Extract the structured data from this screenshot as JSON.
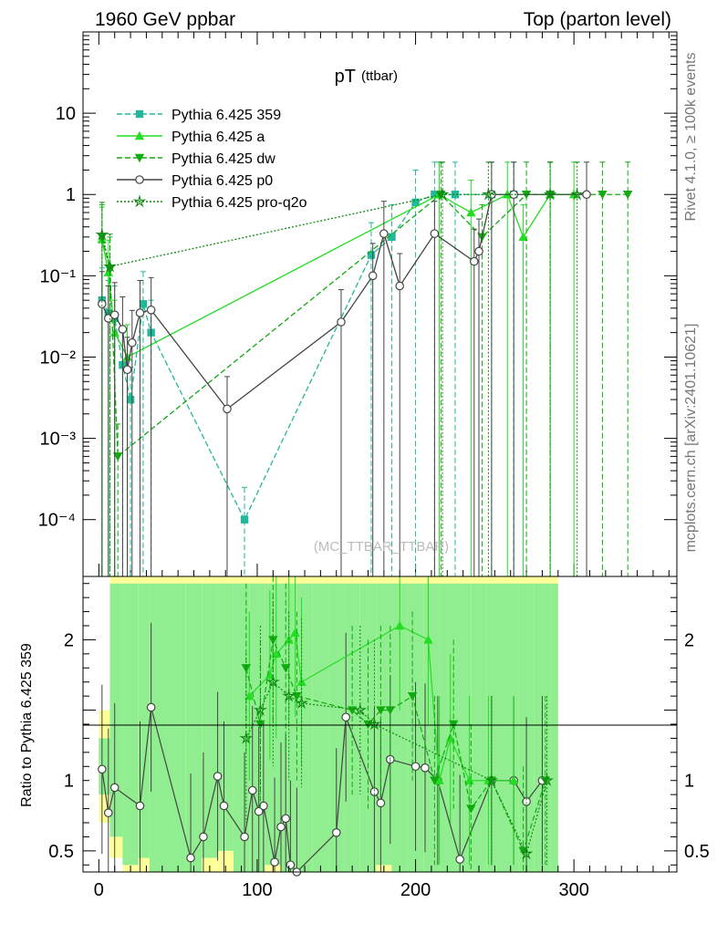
{
  "header": {
    "left": "1960 GeV ppbar",
    "right": "Top (parton level)"
  },
  "side_text": {
    "rivet": "Rivet 4.1.0, ≥ 100k events",
    "mcplots": "mcplots.cern.ch [arXiv:2401.10621]"
  },
  "watermark": "(MC_TTBAR_TTBAR)",
  "chart_data": {
    "type": "line",
    "title_main": "pT",
    "title_sub": "(ttbar)",
    "xlabel": "",
    "ylabel_ratio": "Ratio to Pythia 6.425 359",
    "xlim": [
      -10,
      365
    ],
    "ylim_main": [
      2e-05,
      100
    ],
    "ylim_ratio": [
      0.35,
      2.45
    ],
    "yscale_main": "log",
    "x_ticks": [
      0,
      100,
      200,
      300
    ],
    "y_ticks_main": [
      {
        "v": 10,
        "label": "10"
      },
      {
        "v": 1,
        "label": "1"
      },
      {
        "v": 0.1,
        "label": "10⁻¹"
      },
      {
        "v": 0.01,
        "label": "10⁻²"
      },
      {
        "v": 0.001,
        "label": "10⁻³"
      },
      {
        "v": 0.0001,
        "label": "10⁻⁴"
      }
    ],
    "y_ticks_ratio": [
      {
        "v": 2,
        "label": "2"
      },
      {
        "v": 1,
        "label": "1"
      },
      {
        "v": 0.5,
        "label": "0.5"
      }
    ],
    "legend_position": "top-left",
    "series": [
      {
        "name": "Pythia 6.425 359",
        "color": "#22b89a",
        "dash": "6,3",
        "marker": "square",
        "x": [
          2,
          6,
          10,
          15,
          20,
          28,
          33,
          92,
          172,
          185,
          200,
          212,
          225,
          248,
          262
        ],
        "y": [
          0.05,
          0.035,
          0.03,
          0.008,
          0.003,
          0.045,
          0.02,
          0.0001,
          0.18,
          0.3,
          0.8,
          1.0,
          1.0,
          1.0,
          1.0
        ]
      },
      {
        "name": "Pythia 6.425 a",
        "color": "#22dd22",
        "dash": "",
        "marker": "triangle-up",
        "x": [
          2,
          6,
          10,
          18,
          215,
          235,
          258,
          268,
          285,
          300
        ],
        "y": [
          0.28,
          0.11,
          0.02,
          0.01,
          1.0,
          0.6,
          1.0,
          0.3,
          1.0,
          1.0
        ]
      },
      {
        "name": "Pythia 6.425 dw",
        "color": "#11aa11",
        "dash": "6,3",
        "marker": "triangle-down",
        "x": [
          2,
          7,
          12,
          216,
          242,
          270,
          285,
          318,
          334
        ],
        "y": [
          0.3,
          0.12,
          0.0006,
          1.0,
          0.3,
          1.0,
          1.0,
          1.0,
          1.0
        ]
      },
      {
        "name": "Pythia 6.425 p0",
        "color": "#444444",
        "dash": "",
        "marker": "open-circle",
        "x": [
          2,
          6,
          10,
          15,
          18,
          21,
          26,
          33,
          81,
          153,
          173,
          180,
          190,
          212,
          237,
          240,
          248,
          262,
          308
        ],
        "y": [
          0.045,
          0.03,
          0.033,
          0.022,
          0.007,
          0.015,
          0.035,
          0.038,
          0.0023,
          0.027,
          0.1,
          0.33,
          0.075,
          0.33,
          0.15,
          0.2,
          1.0,
          1.0,
          1.0
        ]
      },
      {
        "name": "Pythia 6.425 pro-q2o",
        "color": "#118811",
        "dash": "2,2",
        "marker": "open-star",
        "x": [
          2,
          7,
          217,
          246,
          285,
          302
        ],
        "y": [
          0.32,
          0.13,
          1.0,
          1.0,
          1.0,
          1.0
        ]
      }
    ],
    "ratio_series": [
      {
        "name": "Pythia 6.425 p0",
        "color": "#444444",
        "x": [
          2,
          6,
          10,
          26,
          33,
          58,
          66,
          75,
          79,
          92,
          97,
          101,
          104,
          111,
          115,
          118,
          121,
          125,
          150,
          156,
          174,
          178,
          184,
          200,
          206,
          214,
          228,
          248,
          262,
          270,
          280
        ],
        "y": [
          1.08,
          0.77,
          0.95,
          0.82,
          1.52,
          0.45,
          0.6,
          1.03,
          0.82,
          0.6,
          0.93,
          0.78,
          0.82,
          0.42,
          0.67,
          0.73,
          0.4,
          0.35,
          0.63,
          1.45,
          0.92,
          0.84,
          1.15,
          1.1,
          1.09,
          1.0,
          0.44,
          1.0,
          1.0,
          0.85,
          1.0
        ]
      },
      {
        "name": "Pythia 6.425 a",
        "color": "#22dd22",
        "x": [
          95,
          108,
          112,
          120,
          124,
          128,
          190,
          208,
          215,
          222,
          234,
          246,
          262
        ],
        "y": [
          1.6,
          1.75,
          1.9,
          2.0,
          2.05,
          1.7,
          2.1,
          2.0,
          1.0,
          1.3,
          1.0,
          1.0,
          1.0
        ]
      },
      {
        "name": "Pythia 6.425 dw",
        "color": "#11aa11",
        "x": [
          93,
          102,
          110,
          118,
          125,
          160,
          170,
          178,
          184,
          198,
          212,
          224,
          235,
          248,
          268,
          282
        ],
        "y": [
          1.8,
          1.4,
          2.0,
          1.8,
          1.6,
          1.5,
          1.4,
          1.5,
          1.5,
          1.6,
          1.0,
          1.4,
          0.8,
          1.0,
          0.5,
          1.0
        ]
      },
      {
        "name": "Pythia 6.425 pro-q2o",
        "color": "#118811",
        "x": [
          93,
          102,
          110,
          120,
          128,
          165,
          174,
          248,
          270,
          283
        ],
        "y": [
          1.3,
          1.5,
          1.7,
          1.6,
          1.55,
          1.5,
          1.4,
          1.0,
          0.48,
          1.0
        ]
      }
    ],
    "reference_band": {
      "x": [
        0,
        7,
        15,
        25,
        32,
        45,
        55,
        65,
        75,
        85,
        95,
        105,
        115,
        125,
        135,
        145,
        155,
        165,
        175,
        185,
        195,
        205,
        215,
        225,
        235,
        245,
        255,
        265,
        275,
        285
      ],
      "lo_inner": [
        0.9,
        0.6,
        0.4,
        0.45,
        0.35,
        0.35,
        0.35,
        0.45,
        0.5,
        0.35,
        0.35,
        0.4,
        0.35,
        0.35,
        0.35,
        0.35,
        0.35,
        0.35,
        0.4,
        0.35,
        0.35,
        0.35,
        0.35,
        0.35,
        0.35,
        0.35,
        0.35,
        0.35,
        0.35,
        0.35
      ],
      "hi_inner": [
        1.3,
        2.4,
        2.4,
        2.4,
        2.4,
        2.4,
        2.4,
        2.4,
        2.4,
        2.4,
        2.4,
        2.4,
        2.4,
        2.4,
        2.4,
        2.4,
        2.4,
        2.4,
        2.4,
        2.4,
        2.4,
        2.4,
        2.4,
        2.4,
        2.4,
        2.4,
        2.4,
        2.4,
        2.4,
        2.4
      ],
      "lo_outer": [
        0.7,
        0.45,
        0.35,
        0.35,
        0.35,
        0.35,
        0.35,
        0.35,
        0.35,
        0.35,
        0.35,
        0.35,
        0.35,
        0.35,
        0.35,
        0.35,
        0.35,
        0.35,
        0.35,
        0.35,
        0.35,
        0.35,
        0.35,
        0.35,
        0.35,
        0.35,
        0.35,
        0.35,
        0.35,
        0.35
      ],
      "hi_outer": [
        1.5,
        2.45,
        2.45,
        2.45,
        2.45,
        2.45,
        2.45,
        2.45,
        2.45,
        2.45,
        2.45,
        2.45,
        2.45,
        2.45,
        2.45,
        2.45,
        2.45,
        2.45,
        2.45,
        2.45,
        2.45,
        2.45,
        2.45,
        2.45,
        2.45,
        2.45,
        2.45,
        2.45,
        2.45,
        2.45
      ],
      "inner_color": "#90ee90",
      "outer_color": "#ffff99"
    }
  }
}
